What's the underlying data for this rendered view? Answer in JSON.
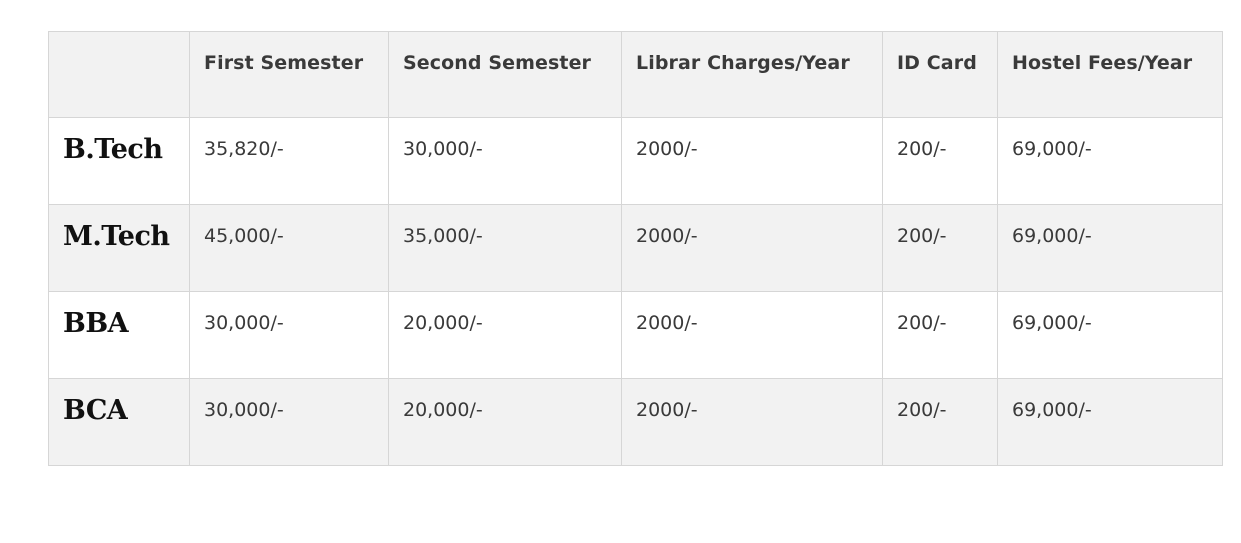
{
  "table": {
    "headers": [
      "",
      "First Semester",
      "Second Semester",
      "Librar Charges/Year",
      "ID Card",
      "Hostel Fees/Year"
    ],
    "rows": [
      [
        "B.Tech",
        "35,820/-",
        "30,000/-",
        "2000/-",
        "200/-",
        "69,000/-"
      ],
      [
        "M.Tech",
        "45,000/-",
        "35,000/-",
        "2000/-",
        "200/-",
        "69,000/-"
      ],
      [
        "BBA",
        "30,000/-",
        "20,000/-",
        "2000/-",
        "200/-",
        "69,000/-"
      ],
      [
        "BCA",
        "30,000/-",
        "20,000/-",
        "2000/-",
        "200/-",
        "69,000/-"
      ]
    ]
  },
  "colors": {
    "header_bg": "#f2f2f2",
    "alt_row_bg": "#f2f2f2",
    "border": "#d6d6d6"
  }
}
